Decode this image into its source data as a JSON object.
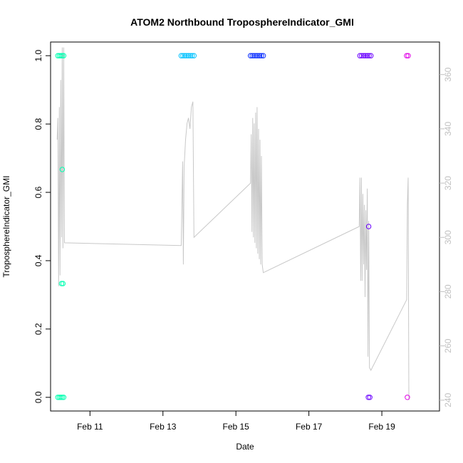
{
  "chart_data": {
    "type": "scatter",
    "title": "ATOM2 Northbound TroposphereIndicator_GMI",
    "xlabel": "Date",
    "ylabel": "TroposphereIndicator_GMI",
    "x_unit": "days",
    "xlim": [
      9.92,
      20.58
    ],
    "ylim": [
      -0.04,
      1.04
    ],
    "x_ticks": [
      {
        "value": 11,
        "label": "Feb 11"
      },
      {
        "value": 13,
        "label": "Feb 13"
      },
      {
        "value": 15,
        "label": "Feb 15"
      },
      {
        "value": 17,
        "label": "Feb 17"
      },
      {
        "value": 19,
        "label": "Feb 19"
      }
    ],
    "y_ticks": [
      {
        "value": 0.0,
        "label": "0.0"
      },
      {
        "value": 0.2,
        "label": "0.2"
      },
      {
        "value": 0.4,
        "label": "0.4"
      },
      {
        "value": 0.6,
        "label": "0.6"
      },
      {
        "value": 0.8,
        "label": "0.8"
      },
      {
        "value": 1.0,
        "label": "1.0"
      }
    ],
    "y2lim": [
      236,
      372
    ],
    "y2_ticks": [
      {
        "value": 240,
        "label": "240"
      },
      {
        "value": 260,
        "label": "260"
      },
      {
        "value": 280,
        "label": "280"
      },
      {
        "value": 300,
        "label": "300"
      },
      {
        "value": 320,
        "label": "320"
      },
      {
        "value": 340,
        "label": "340"
      },
      {
        "value": 360,
        "label": "360"
      }
    ],
    "grid": false,
    "legend": "none",
    "series": [
      {
        "color": "#00ffb0",
        "points": [
          [
            10.12,
            1.0
          ],
          [
            10.16,
            1.0
          ],
          [
            10.2,
            1.0
          ],
          [
            10.24,
            1.0
          ],
          [
            10.28,
            1.0
          ],
          [
            10.12,
            0.0
          ],
          [
            10.16,
            0.0
          ],
          [
            10.2,
            0.0
          ],
          [
            10.24,
            0.0
          ],
          [
            10.28,
            0.0
          ],
          [
            10.24,
            0.667
          ],
          [
            10.22,
            0.333
          ],
          [
            10.26,
            0.333
          ]
        ]
      },
      {
        "color": "#00c2ff",
        "points": [
          [
            13.5,
            1.0
          ],
          [
            13.55,
            1.0
          ],
          [
            13.6,
            1.0
          ],
          [
            13.65,
            1.0
          ],
          [
            13.7,
            1.0
          ],
          [
            13.75,
            1.0
          ],
          [
            13.8,
            1.0
          ],
          [
            13.85,
            1.0
          ]
        ]
      },
      {
        "color": "#0a2eff",
        "points": [
          [
            15.4,
            1.0
          ],
          [
            15.45,
            1.0
          ],
          [
            15.5,
            1.0
          ],
          [
            15.55,
            1.0
          ],
          [
            15.6,
            1.0
          ],
          [
            15.65,
            1.0
          ],
          [
            15.7,
            1.0
          ],
          [
            15.75,
            1.0
          ]
        ]
      },
      {
        "color": "#6a00ff",
        "points": [
          [
            18.4,
            1.0
          ],
          [
            18.45,
            1.0
          ],
          [
            18.5,
            1.0
          ],
          [
            18.55,
            1.0
          ],
          [
            18.6,
            1.0
          ],
          [
            18.65,
            1.0
          ],
          [
            18.7,
            1.0
          ],
          [
            18.64,
            0.5
          ],
          [
            18.63,
            0.0
          ],
          [
            18.67,
            0.0
          ]
        ]
      },
      {
        "color": "#e000e6",
        "points": [
          [
            19.68,
            1.0
          ],
          [
            19.72,
            1.0
          ],
          [
            19.7,
            0.0
          ]
        ]
      }
    ],
    "secondary_line": {
      "color": "#c8c8c8",
      "points": [
        [
          10.1,
          336
        ],
        [
          10.12,
          344
        ],
        [
          10.14,
          282
        ],
        [
          10.16,
          348
        ],
        [
          10.18,
          286
        ],
        [
          10.2,
          358
        ],
        [
          10.22,
          300
        ],
        [
          10.24,
          370
        ],
        [
          10.26,
          296
        ],
        [
          10.28,
          370
        ],
        [
          10.3,
          298
        ],
        [
          13.5,
          297
        ],
        [
          13.54,
          328
        ],
        [
          13.56,
          290
        ],
        [
          13.58,
          326
        ],
        [
          13.62,
          336
        ],
        [
          13.66,
          342
        ],
        [
          13.7,
          344
        ],
        [
          13.74,
          340
        ],
        [
          13.78,
          348
        ],
        [
          13.82,
          350
        ],
        [
          13.85,
          300
        ],
        [
          15.4,
          320
        ],
        [
          15.42,
          338
        ],
        [
          15.44,
          302
        ],
        [
          15.46,
          344
        ],
        [
          15.48,
          300
        ],
        [
          15.5,
          342
        ],
        [
          15.52,
          298
        ],
        [
          15.54,
          346
        ],
        [
          15.56,
          296
        ],
        [
          15.58,
          348
        ],
        [
          15.6,
          294
        ],
        [
          15.62,
          340
        ],
        [
          15.64,
          292
        ],
        [
          15.66,
          336
        ],
        [
          15.68,
          290
        ],
        [
          15.7,
          330
        ],
        [
          15.72,
          290
        ],
        [
          15.75,
          287
        ],
        [
          18.38,
          304
        ],
        [
          18.4,
          322
        ],
        [
          18.42,
          284
        ],
        [
          18.44,
          322
        ],
        [
          18.46,
          284
        ],
        [
          18.48,
          316
        ],
        [
          18.5,
          290
        ],
        [
          18.52,
          312
        ],
        [
          18.54,
          278
        ],
        [
          18.56,
          310
        ],
        [
          18.58,
          288
        ],
        [
          18.6,
          318
        ],
        [
          18.62,
          256
        ],
        [
          18.64,
          306
        ],
        [
          18.66,
          252
        ],
        [
          18.7,
          251
        ],
        [
          19.68,
          277
        ],
        [
          19.7,
          312
        ],
        [
          19.72,
          322
        ],
        [
          19.74,
          240
        ]
      ]
    }
  }
}
